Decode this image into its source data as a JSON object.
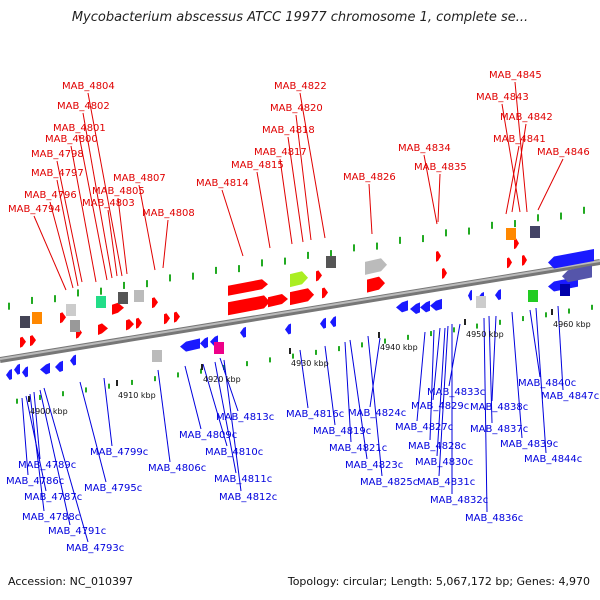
{
  "title": "Mycobacterium abscessus ATCC 19977 chromosome 1, complete se...",
  "footer": {
    "accession": "Accession: NC_010397",
    "summary": "Topology: circular; Length: 5,067,172 bp; Genes: 4,970"
  },
  "colors": {
    "forward_gene": "#ff0000",
    "reverse_gene": "#1a1aff",
    "forward_label": "#e00000",
    "reverse_label": "#0000dd",
    "backbone": "#888888",
    "tick": "#22aa22"
  },
  "map": {
    "kbp_labels": [
      "4900 kbp",
      "4910 kbp",
      "4920 kbp",
      "4930 kbp",
      "4940 kbp",
      "4950 kbp",
      "4960 kbp"
    ],
    "forward_genes": [
      "MAB_4794",
      "MAB_4796",
      "MAB_4797",
      "MAB_4798",
      "MAB_4800",
      "MAB_4801",
      "MAB_4802",
      "MAB_4803",
      "MAB_4804",
      "MAB_4805",
      "MAB_4807",
      "MAB_4808",
      "MAB_4814",
      "MAB_4815",
      "MAB_4817",
      "MAB_4818",
      "MAB_4820",
      "MAB_4822",
      "MAB_4826",
      "MAB_4834",
      "MAB_4835",
      "MAB_4841",
      "MAB_4842",
      "MAB_4843",
      "MAB_4845",
      "MAB_4846"
    ],
    "reverse_genes": [
      "MAB_4786c",
      "MAB_4787c",
      "MAB_4788c",
      "MAB_4789c",
      "MAB_4791c",
      "MAB_4793c",
      "MAB_4795c",
      "MAB_4799c",
      "MAB_4806c",
      "MAB_4809c",
      "MAB_4810c",
      "MAB_4811c",
      "MAB_4812c",
      "MAB_4813c",
      "MAB_4816c",
      "MAB_4819c",
      "MAB_4821c",
      "MAB_4823c",
      "MAB_4824c",
      "MAB_4825c",
      "MAB_4827c",
      "MAB_4828c",
      "MAB_4829c",
      "MAB_4830c",
      "MAB_4831c",
      "MAB_4832c",
      "MAB_4833c",
      "MAB_4836c",
      "MAB_4837c",
      "MAB_4838c",
      "MAB_4839c",
      "MAB_4840c",
      "MAB_4844c",
      "MAB_4847c"
    ]
  }
}
